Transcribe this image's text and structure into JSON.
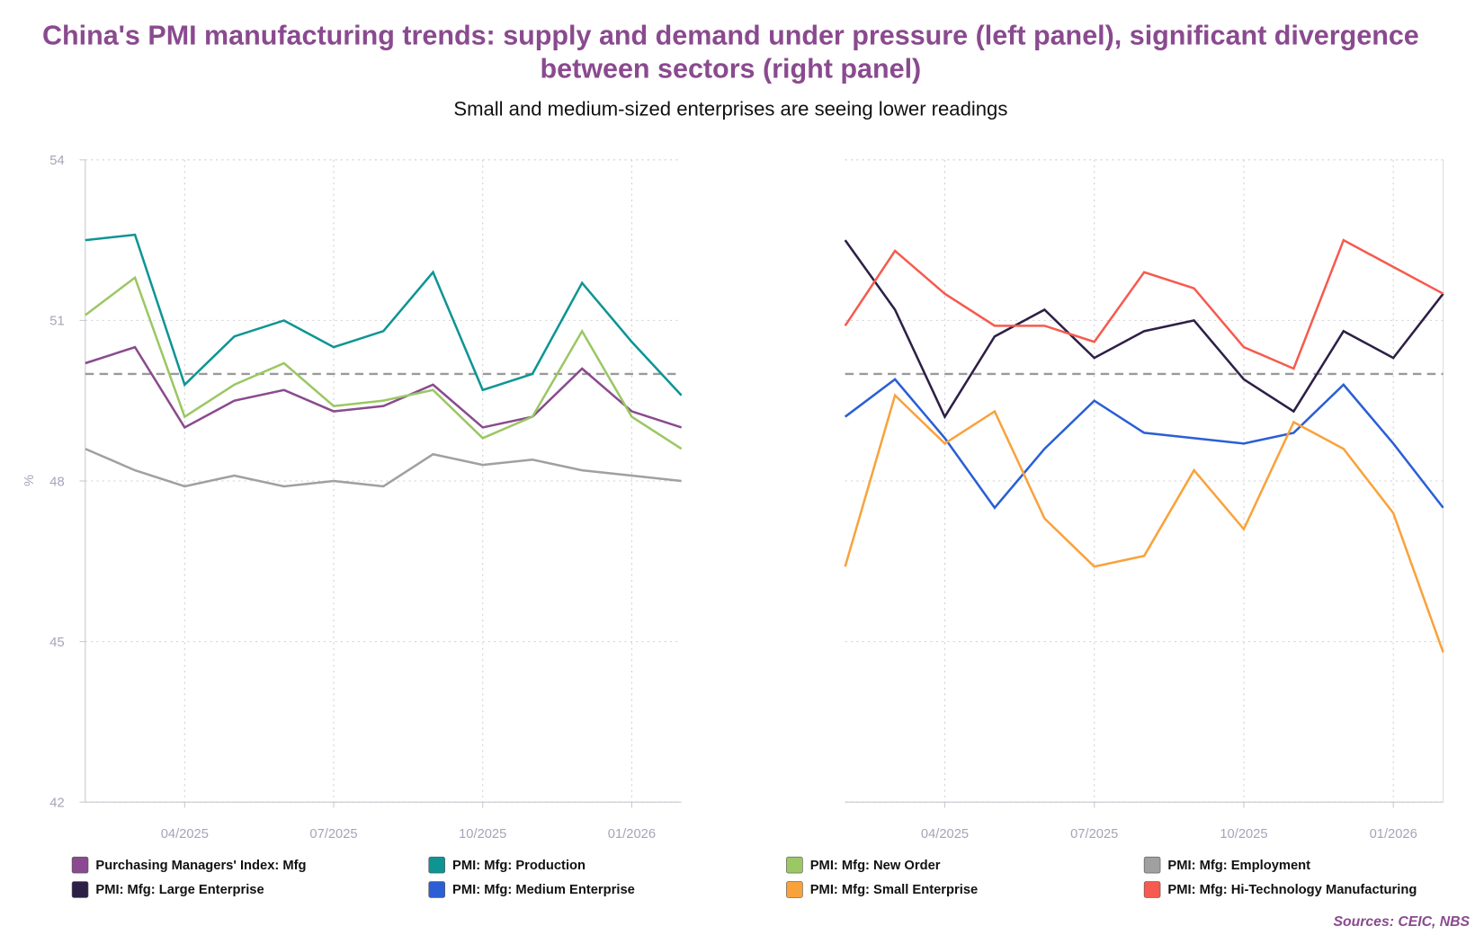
{
  "title_line1": "China's PMI manufacturing trends: supply and demand under pressure (left panel), significant divergence",
  "title_line2": "between sectors (right panel)",
  "subtitle": "Small and medium-sized enterprises are seeing lower readings",
  "source": "Sources: CEIC, NBS",
  "chart_data": [
    {
      "type": "line",
      "panel": "left",
      "ylabel": "%",
      "ylim": [
        42,
        54
      ],
      "yticks": [
        "42",
        "45",
        "48",
        "51",
        "54"
      ],
      "xticks": [
        "04/2025",
        "07/2025",
        "10/2025",
        "01/2026"
      ],
      "x": [
        "02/2025",
        "03/2025",
        "04/2025",
        "05/2025",
        "06/2025",
        "07/2025",
        "08/2025",
        "09/2025",
        "10/2025",
        "11/2025",
        "12/2025",
        "01/2026",
        "02/2026"
      ],
      "reference_line": 50,
      "grid": true,
      "series": [
        {
          "name": "Purchasing Managers' Index: Mfg",
          "color": "#8a4a8f",
          "values": [
            50.2,
            50.5,
            49.0,
            49.5,
            49.7,
            49.3,
            49.4,
            49.8,
            49.0,
            49.2,
            50.1,
            49.3,
            49.0
          ]
        },
        {
          "name": "PMI: Mfg: Production",
          "color": "#0f9494",
          "values": [
            52.5,
            52.6,
            49.8,
            50.7,
            51.0,
            50.5,
            50.8,
            51.9,
            49.7,
            50.0,
            51.7,
            50.6,
            49.6
          ]
        },
        {
          "name": "PMI: Mfg: New Order",
          "color": "#9bc764",
          "values": [
            51.1,
            51.8,
            49.2,
            49.8,
            50.2,
            49.4,
            49.5,
            49.7,
            48.8,
            49.2,
            50.8,
            49.2,
            48.6
          ]
        },
        {
          "name": "PMI: Mfg: Employment",
          "color": "#a0a0a0",
          "values": [
            48.6,
            48.2,
            47.9,
            48.1,
            47.9,
            48.0,
            47.9,
            48.5,
            48.3,
            48.4,
            48.2,
            48.1,
            48.0
          ]
        }
      ]
    },
    {
      "type": "line",
      "panel": "right",
      "ylim": [
        42,
        54
      ],
      "xticks": [
        "04/2025",
        "07/2025",
        "10/2025",
        "01/2026"
      ],
      "x": [
        "02/2025",
        "03/2025",
        "04/2025",
        "05/2025",
        "06/2025",
        "07/2025",
        "08/2025",
        "09/2025",
        "10/2025",
        "11/2025",
        "12/2025",
        "01/2026",
        "02/2026"
      ],
      "reference_line": 50,
      "grid": true,
      "series": [
        {
          "name": "PMI: Mfg: Large Enterprise",
          "color": "#2d1f45",
          "values": [
            52.5,
            51.2,
            49.2,
            50.7,
            51.2,
            50.3,
            50.8,
            51.0,
            49.9,
            49.3,
            50.8,
            50.3,
            51.5
          ]
        },
        {
          "name": "PMI: Mfg: Medium Enterprise",
          "color": "#2a5fd6",
          "values": [
            49.2,
            49.9,
            48.8,
            47.5,
            48.6,
            49.5,
            48.9,
            48.8,
            48.7,
            48.9,
            49.8,
            48.7,
            47.5
          ]
        },
        {
          "name": "PMI: Mfg: Small Enterprise",
          "color": "#f9a23c",
          "values": [
            46.4,
            49.6,
            48.7,
            49.3,
            47.3,
            46.4,
            46.6,
            48.2,
            47.1,
            49.1,
            48.6,
            47.4,
            44.8
          ]
        },
        {
          "name": "PMI: Mfg: Hi-Technology Manufacturing",
          "color": "#f55b4e",
          "values": [
            50.9,
            52.3,
            51.5,
            50.9,
            50.9,
            50.6,
            51.9,
            51.6,
            50.5,
            50.1,
            52.5,
            52.0,
            51.5
          ]
        }
      ]
    }
  ],
  "legend_order": [
    [
      0,
      0
    ],
    [
      0,
      1
    ],
    [
      0,
      2
    ],
    [
      0,
      3
    ],
    [
      1,
      0
    ],
    [
      1,
      1
    ],
    [
      1,
      2
    ],
    [
      1,
      3
    ]
  ]
}
